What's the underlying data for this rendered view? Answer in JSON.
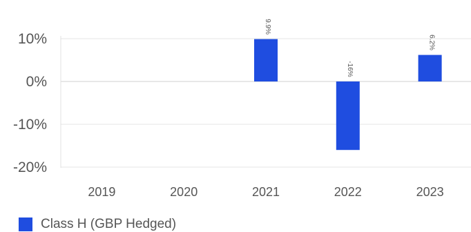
{
  "chart_data": {
    "type": "bar",
    "categories": [
      "2019",
      "2020",
      "2021",
      "2022",
      "2023"
    ],
    "series": [
      {
        "name": "Class H (GBP Hedged)",
        "values": [
          null,
          null,
          9.9,
          -16,
          6.2
        ],
        "labels": [
          "",
          "",
          "9.9%",
          "-16%",
          "6.2%"
        ]
      }
    ],
    "yticks": [
      "10%",
      "0%",
      "-10%",
      "-20%"
    ],
    "ytick_values": [
      10,
      0,
      -10,
      -20
    ],
    "ylim": [
      -20,
      10
    ],
    "grid": true,
    "legend_position": "bottom-left",
    "bar_color": "#1f4de0"
  }
}
